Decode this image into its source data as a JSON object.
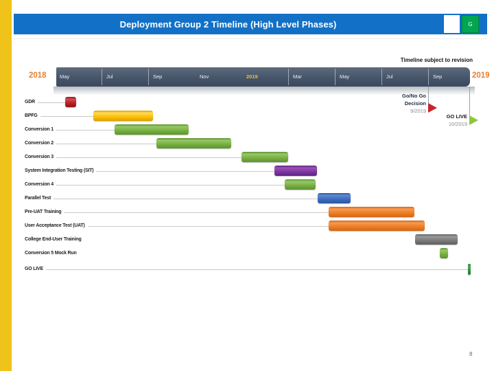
{
  "slide": {
    "title": "Deployment Group 2 Timeline (High Level Phases)",
    "corner_badge": "G",
    "note": "Timeline subject to revision",
    "year_left": "2018",
    "year_right": "2019",
    "page_number": "8"
  },
  "colors": {
    "title_bar_blue": "#1271C6",
    "badge_green": "#00A651",
    "accent_stripe_gold": "#EFC319",
    "axis_dark": "#46556A",
    "year_orange": "#E8812B",
    "axis_year_gold": "#F2BE2E",
    "leader_line": "#C9C9C9",
    "bars": {
      "red": {
        "light": "#D84A50",
        "base": "#B52025",
        "dark": "#8E1418"
      },
      "yellow": {
        "light": "#FFD95A",
        "base": "#FBBE00",
        "dark": "#DC9F00"
      },
      "green": {
        "light": "#97C867",
        "base": "#76AE3F",
        "dark": "#5C9330"
      },
      "purple": {
        "light": "#9A52B5",
        "base": "#7B35A0",
        "dark": "#5C2380"
      },
      "blue": {
        "light": "#6089CE",
        "base": "#3A6BBF",
        "dark": "#2C55A0"
      },
      "orange": {
        "light": "#F59A53",
        "base": "#EE7C22",
        "dark": "#D26612"
      },
      "gray": {
        "light": "#999999",
        "base": "#7A7A7A",
        "dark": "#5E5E5E"
      },
      "golive": {
        "light": "#4CAE57",
        "base": "#2F9140",
        "dark": "#1F7A30"
      }
    }
  },
  "chart_data": {
    "type": "gantt-timeline",
    "title": "Deployment Group 2 Timeline (High Level Phases)",
    "axis": {
      "start": "2018-04-15",
      "end": "2019-10-25",
      "months": [
        {
          "label": "May",
          "date": "2018-05-01",
          "tick": false,
          "highlight": false
        },
        {
          "label": "Jul",
          "date": "2018-07-01",
          "tick": true,
          "highlight": false
        },
        {
          "label": "Sep",
          "date": "2018-09-01",
          "tick": true,
          "highlight": false
        },
        {
          "label": "Nov",
          "date": "2018-11-01",
          "tick": false,
          "highlight": false
        },
        {
          "label": "2019",
          "date": "2019-01-01",
          "tick": false,
          "highlight": true
        },
        {
          "label": "Mar",
          "date": "2019-03-01",
          "tick": true,
          "highlight": false
        },
        {
          "label": "May",
          "date": "2019-05-01",
          "tick": true,
          "highlight": false
        },
        {
          "label": "Jul",
          "date": "2019-07-01",
          "tick": true,
          "highlight": false
        },
        {
          "label": "Sep",
          "date": "2019-09-01",
          "tick": true,
          "highlight": false
        }
      ]
    },
    "tasks": [
      {
        "label": "GDR",
        "color": "red",
        "start": "2018-05-14",
        "end": "2018-05-28",
        "leader_line": true
      },
      {
        "label": "BPFG",
        "color": "yellow",
        "start": "2018-06-20",
        "end": "2018-09-07",
        "leader_line": true
      },
      {
        "label": "Conversion 1",
        "color": "green",
        "start": "2018-07-18",
        "end": "2018-10-23",
        "leader_line": true
      },
      {
        "label": "Conversion 2",
        "color": "green",
        "start": "2018-09-12",
        "end": "2018-12-18",
        "leader_line": true
      },
      {
        "label": "Conversion 3",
        "color": "green",
        "start": "2019-01-01",
        "end": "2019-03-01",
        "leader_line": true
      },
      {
        "label": "System Integration Testing (SIT)",
        "color": "purple",
        "start": "2019-02-13",
        "end": "2019-04-08",
        "leader_line": true
      },
      {
        "label": "Conversion 4",
        "color": "green",
        "start": "2019-02-27",
        "end": "2019-04-06",
        "leader_line": true
      },
      {
        "label": "Parallel Test",
        "color": "blue",
        "start": "2019-04-09",
        "end": "2019-05-21",
        "leader_line": true
      },
      {
        "label": "Pre-UAT Training",
        "color": "orange",
        "start": "2019-04-23",
        "end": "2019-08-13",
        "leader_line": true
      },
      {
        "label": "User Acceptance Test (UAT)",
        "color": "orange",
        "start": "2019-04-23",
        "end": "2019-08-27",
        "leader_line": true
      },
      {
        "label": "College End-User Training",
        "color": "gray",
        "start": "2019-08-14",
        "end": "2019-10-09",
        "leader_line": false
      },
      {
        "label": "Conversion 5 Mock Run",
        "color": "green",
        "start": "2019-09-16",
        "end": "2019-09-27",
        "leader_line": false
      },
      {
        "label": "GO LIVE",
        "color": "golive",
        "start": "2019-10-22",
        "end": "2019-10-26",
        "leader_line": true,
        "milestone_bar": true
      }
    ],
    "milestones": [
      {
        "name": "go-no-go-decision",
        "label_lines": [
          "Go/No Go",
          "Decision"
        ],
        "sublabel": "9/2019",
        "date": "2019-09-01",
        "marker_color": "#C52528",
        "text_color": "#1F2A44",
        "drop": 31
      },
      {
        "name": "go-live",
        "label_lines": [
          "GO LIVE"
        ],
        "sublabel": "10/2019",
        "date": "2019-10-24",
        "marker_color": "#8DC63F",
        "text_color": "#1A1A1A",
        "drop": 49
      }
    ]
  }
}
